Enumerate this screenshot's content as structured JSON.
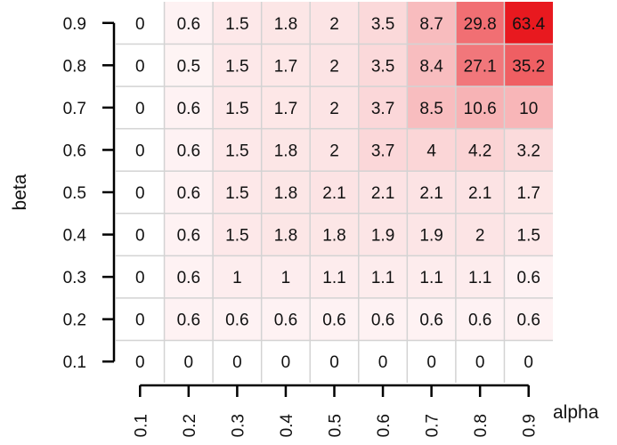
{
  "chart_data": {
    "type": "heatmap",
    "title": "",
    "xlabel": "alpha",
    "ylabel": "beta",
    "x": [
      "0.1",
      "0.2",
      "0.3",
      "0.4",
      "0.5",
      "0.6",
      "0.7",
      "0.8",
      "0.9"
    ],
    "y": [
      "0.9",
      "0.8",
      "0.7",
      "0.6",
      "0.5",
      "0.4",
      "0.3",
      "0.2",
      "0.1"
    ],
    "values": [
      [
        0,
        0.6,
        1.5,
        1.8,
        2,
        3.5,
        8.7,
        29.8,
        63.4
      ],
      [
        0,
        0.5,
        1.5,
        1.7,
        2,
        3.5,
        8.4,
        27.1,
        35.2
      ],
      [
        0,
        0.6,
        1.5,
        1.7,
        2,
        3.7,
        8.5,
        10.6,
        10
      ],
      [
        0,
        0.6,
        1.5,
        1.8,
        2,
        3.7,
        4,
        4.2,
        3.2
      ],
      [
        0,
        0.6,
        1.5,
        1.8,
        2.1,
        2.1,
        2.1,
        2.1,
        1.7
      ],
      [
        0,
        0.6,
        1.5,
        1.8,
        1.8,
        1.9,
        1.9,
        2,
        1.5
      ],
      [
        0,
        0.6,
        1,
        1,
        1.1,
        1.1,
        1.1,
        1.1,
        0.6
      ],
      [
        0,
        0.6,
        0.6,
        0.6,
        0.6,
        0.6,
        0.6,
        0.6,
        0.6
      ],
      [
        0,
        0,
        0,
        0,
        0,
        0,
        0,
        0,
        0
      ]
    ],
    "color_low": "#ffffff",
    "color_high": "#e8191f",
    "grid_color": "#d3d3d3",
    "grid": true,
    "legend": "none"
  }
}
